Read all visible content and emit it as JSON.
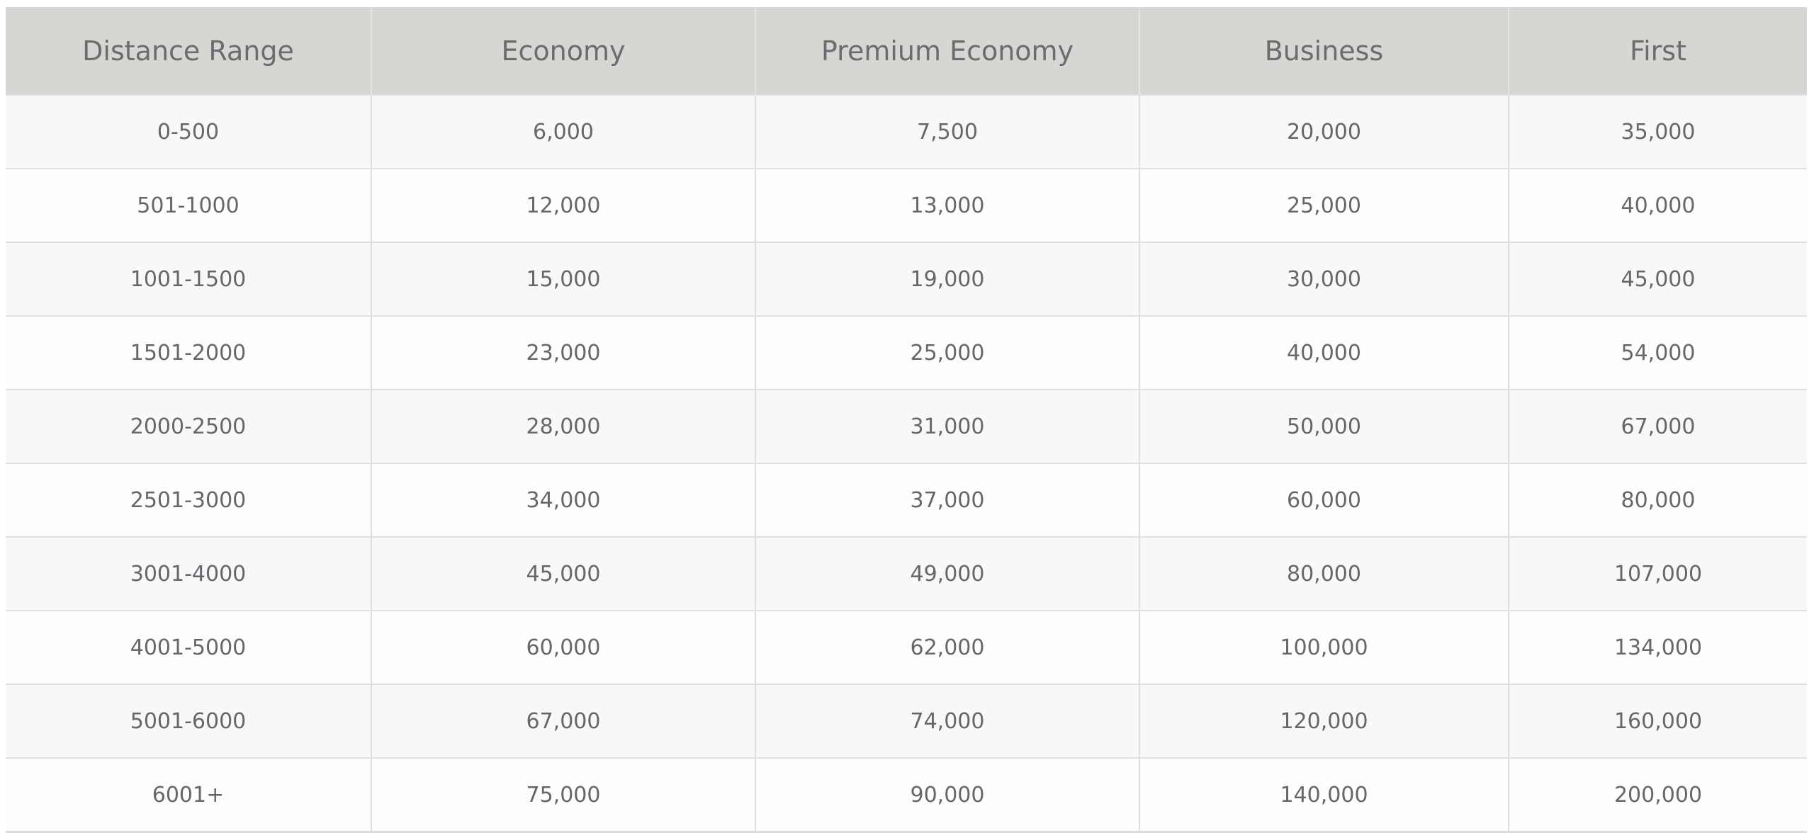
{
  "table": {
    "headers": [
      "Distance Range",
      "Economy",
      "Premium Economy",
      "Business",
      "First"
    ],
    "rows": [
      [
        "0-500",
        "6,000",
        "7,500",
        "20,000",
        "35,000"
      ],
      [
        "501-1000",
        "12,000",
        "13,000",
        "25,000",
        "40,000"
      ],
      [
        "1001-1500",
        "15,000",
        "19,000",
        "30,000",
        "45,000"
      ],
      [
        "1501-2000",
        "23,000",
        "25,000",
        "40,000",
        "54,000"
      ],
      [
        "2000-2500",
        "28,000",
        "31,000",
        "50,000",
        "67,000"
      ],
      [
        "2501-3000",
        "34,000",
        "37,000",
        "60,000",
        "80,000"
      ],
      [
        "3001-4000",
        "45,000",
        "49,000",
        "80,000",
        "107,000"
      ],
      [
        "4001-5000",
        "60,000",
        "62,000",
        "100,000",
        "134,000"
      ],
      [
        "5001-6000",
        "67,000",
        "74,000",
        "120,000",
        "160,000"
      ],
      [
        "6001+",
        "75,000",
        "90,000",
        "140,000",
        "200,000"
      ]
    ]
  }
}
